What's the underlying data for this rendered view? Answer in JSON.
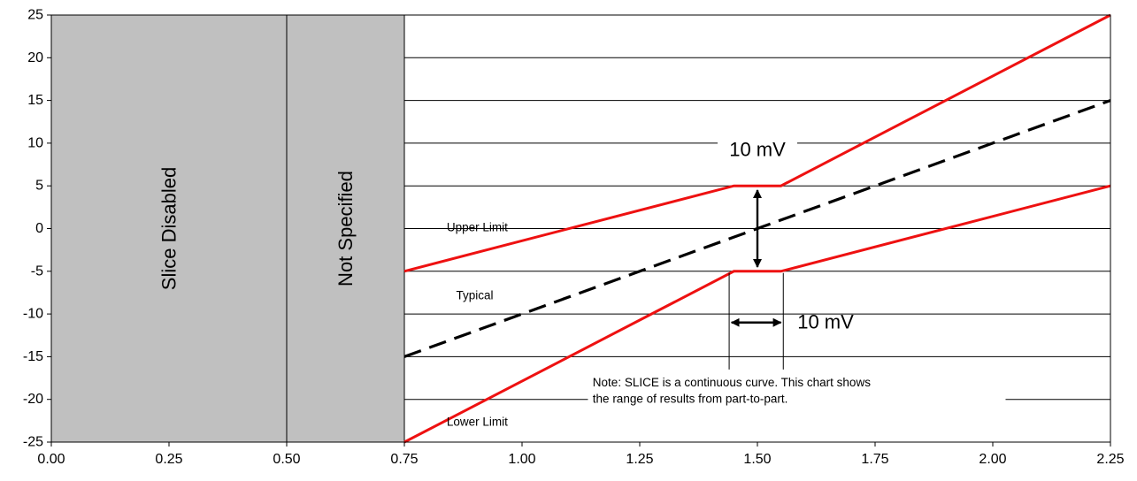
{
  "chart_data": {
    "type": "line",
    "xlim": [
      0,
      2.25
    ],
    "ylim": [
      -25,
      25
    ],
    "x_ticks": [
      "0.00",
      "0.25",
      "0.50",
      "0.75",
      "1.00",
      "1.25",
      "1.50",
      "1.75",
      "2.00",
      "2.25"
    ],
    "y_ticks": [
      "25",
      "20",
      "15",
      "10",
      "5",
      "0",
      "-5",
      "-10",
      "-15",
      "-20",
      "-25"
    ],
    "grid": "horizontal",
    "regions": [
      {
        "label": "Slice Disabled",
        "x": [
          0,
          0.5
        ],
        "color": "#c0c0c0"
      },
      {
        "label": "Not Specified",
        "x": [
          0.5,
          0.75
        ],
        "color": "#c0c0c0"
      }
    ],
    "series": [
      {
        "label": "Upper Limit",
        "style": "solid",
        "color": "#ee1111",
        "points": [
          [
            0.75,
            -5
          ],
          [
            1.45,
            5
          ],
          [
            1.55,
            5
          ],
          [
            2.25,
            25
          ]
        ]
      },
      {
        "label": "Typical",
        "style": "dashed",
        "color": "#000000",
        "points": [
          [
            0.75,
            -15
          ],
          [
            2.25,
            15
          ]
        ]
      },
      {
        "label": "Lower Limit",
        "style": "solid",
        "color": "#ee1111",
        "points": [
          [
            0.75,
            -25
          ],
          [
            1.45,
            -5
          ],
          [
            1.55,
            -5
          ],
          [
            2.25,
            5
          ]
        ]
      }
    ],
    "annotations": {
      "vertical_span": "10 mV",
      "horizontal_span": "10 mV",
      "note_line1": "Note: SLICE is a continuous curve. This chart shows",
      "note_line2": "the range of results from part-to-part."
    }
  }
}
